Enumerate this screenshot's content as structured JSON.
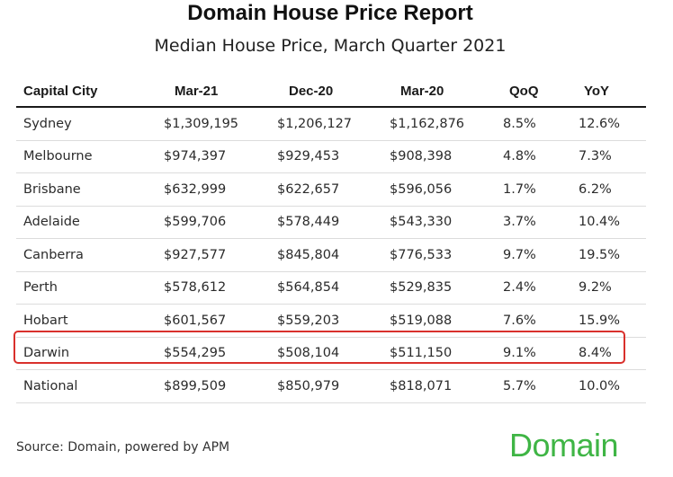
{
  "chart_data": {
    "type": "table",
    "title": "Domain House Price Report",
    "subtitle": "Median House Price, March Quarter 2021",
    "columns": [
      "Capital City",
      "Mar-21",
      "Dec-20",
      "Mar-20",
      "QoQ",
      "YoY"
    ],
    "rows": [
      [
        "Sydney",
        "$1,309,195",
        "$1,206,127",
        "$1,162,876",
        "8.5%",
        "12.6%"
      ],
      [
        "Melbourne",
        "$974,397",
        "$929,453",
        "$908,398",
        "4.8%",
        "7.3%"
      ],
      [
        "Brisbane",
        "$632,999",
        "$622,657",
        "$596,056",
        "1.7%",
        "6.2%"
      ],
      [
        "Adelaide",
        "$599,706",
        "$578,449",
        "$543,330",
        "3.7%",
        "10.4%"
      ],
      [
        "Canberra",
        "$927,577",
        "$845,804",
        "$776,533",
        "9.7%",
        "19.5%"
      ],
      [
        "Perth",
        "$578,612",
        "$564,854",
        "$529,835",
        "2.4%",
        "9.2%"
      ],
      [
        "Hobart",
        "$601,567",
        "$559,203",
        "$519,088",
        "7.6%",
        "15.9%"
      ],
      [
        "Darwin",
        "$554,295",
        "$508,104",
        "$511,150",
        "9.1%",
        "8.4%"
      ],
      [
        "National",
        "$899,509",
        "$850,979",
        "$818,071",
        "5.7%",
        "10.0%"
      ]
    ],
    "highlighted_row": "Darwin",
    "highlight_color": "#d9302c"
  },
  "source": "Source: Domain, powered by APM",
  "logo": {
    "text": "Domain",
    "color": "#3fb545"
  }
}
